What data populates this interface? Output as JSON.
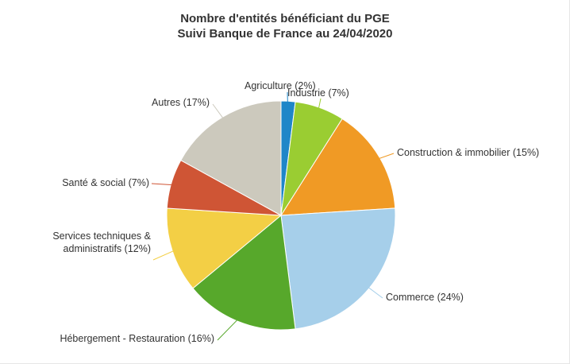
{
  "chart_data": {
    "type": "pie",
    "title": "Nombre d'entités bénéficiant du PGE",
    "subtitle": "Suivi Banque de France au 24/04/2020",
    "slices": [
      {
        "label": "Agriculture (2%)",
        "value": 2,
        "color": "#1f86c8"
      },
      {
        "label": "Industrie (7%)",
        "value": 7,
        "color": "#9acd32"
      },
      {
        "label": "Construction & immobilier (15%)",
        "value": 15,
        "color": "#f09a25"
      },
      {
        "label": "Commerce (24%)",
        "value": 24,
        "color": "#a6cfea"
      },
      {
        "label": "Hébergement - Restauration (16%)",
        "value": 16,
        "color": "#57a82b"
      },
      {
        "label": "Services techniques & administratifs (12%)",
        "label_lines": [
          "Services techniques &",
          "administratifs (12%)"
        ],
        "value": 12,
        "color": "#f3cf45"
      },
      {
        "label": "Santé & social (7%)",
        "value": 7,
        "color": "#cf5535"
      },
      {
        "label": "Autres (17%)",
        "value": 17,
        "color": "#ccc9bd"
      }
    ]
  }
}
